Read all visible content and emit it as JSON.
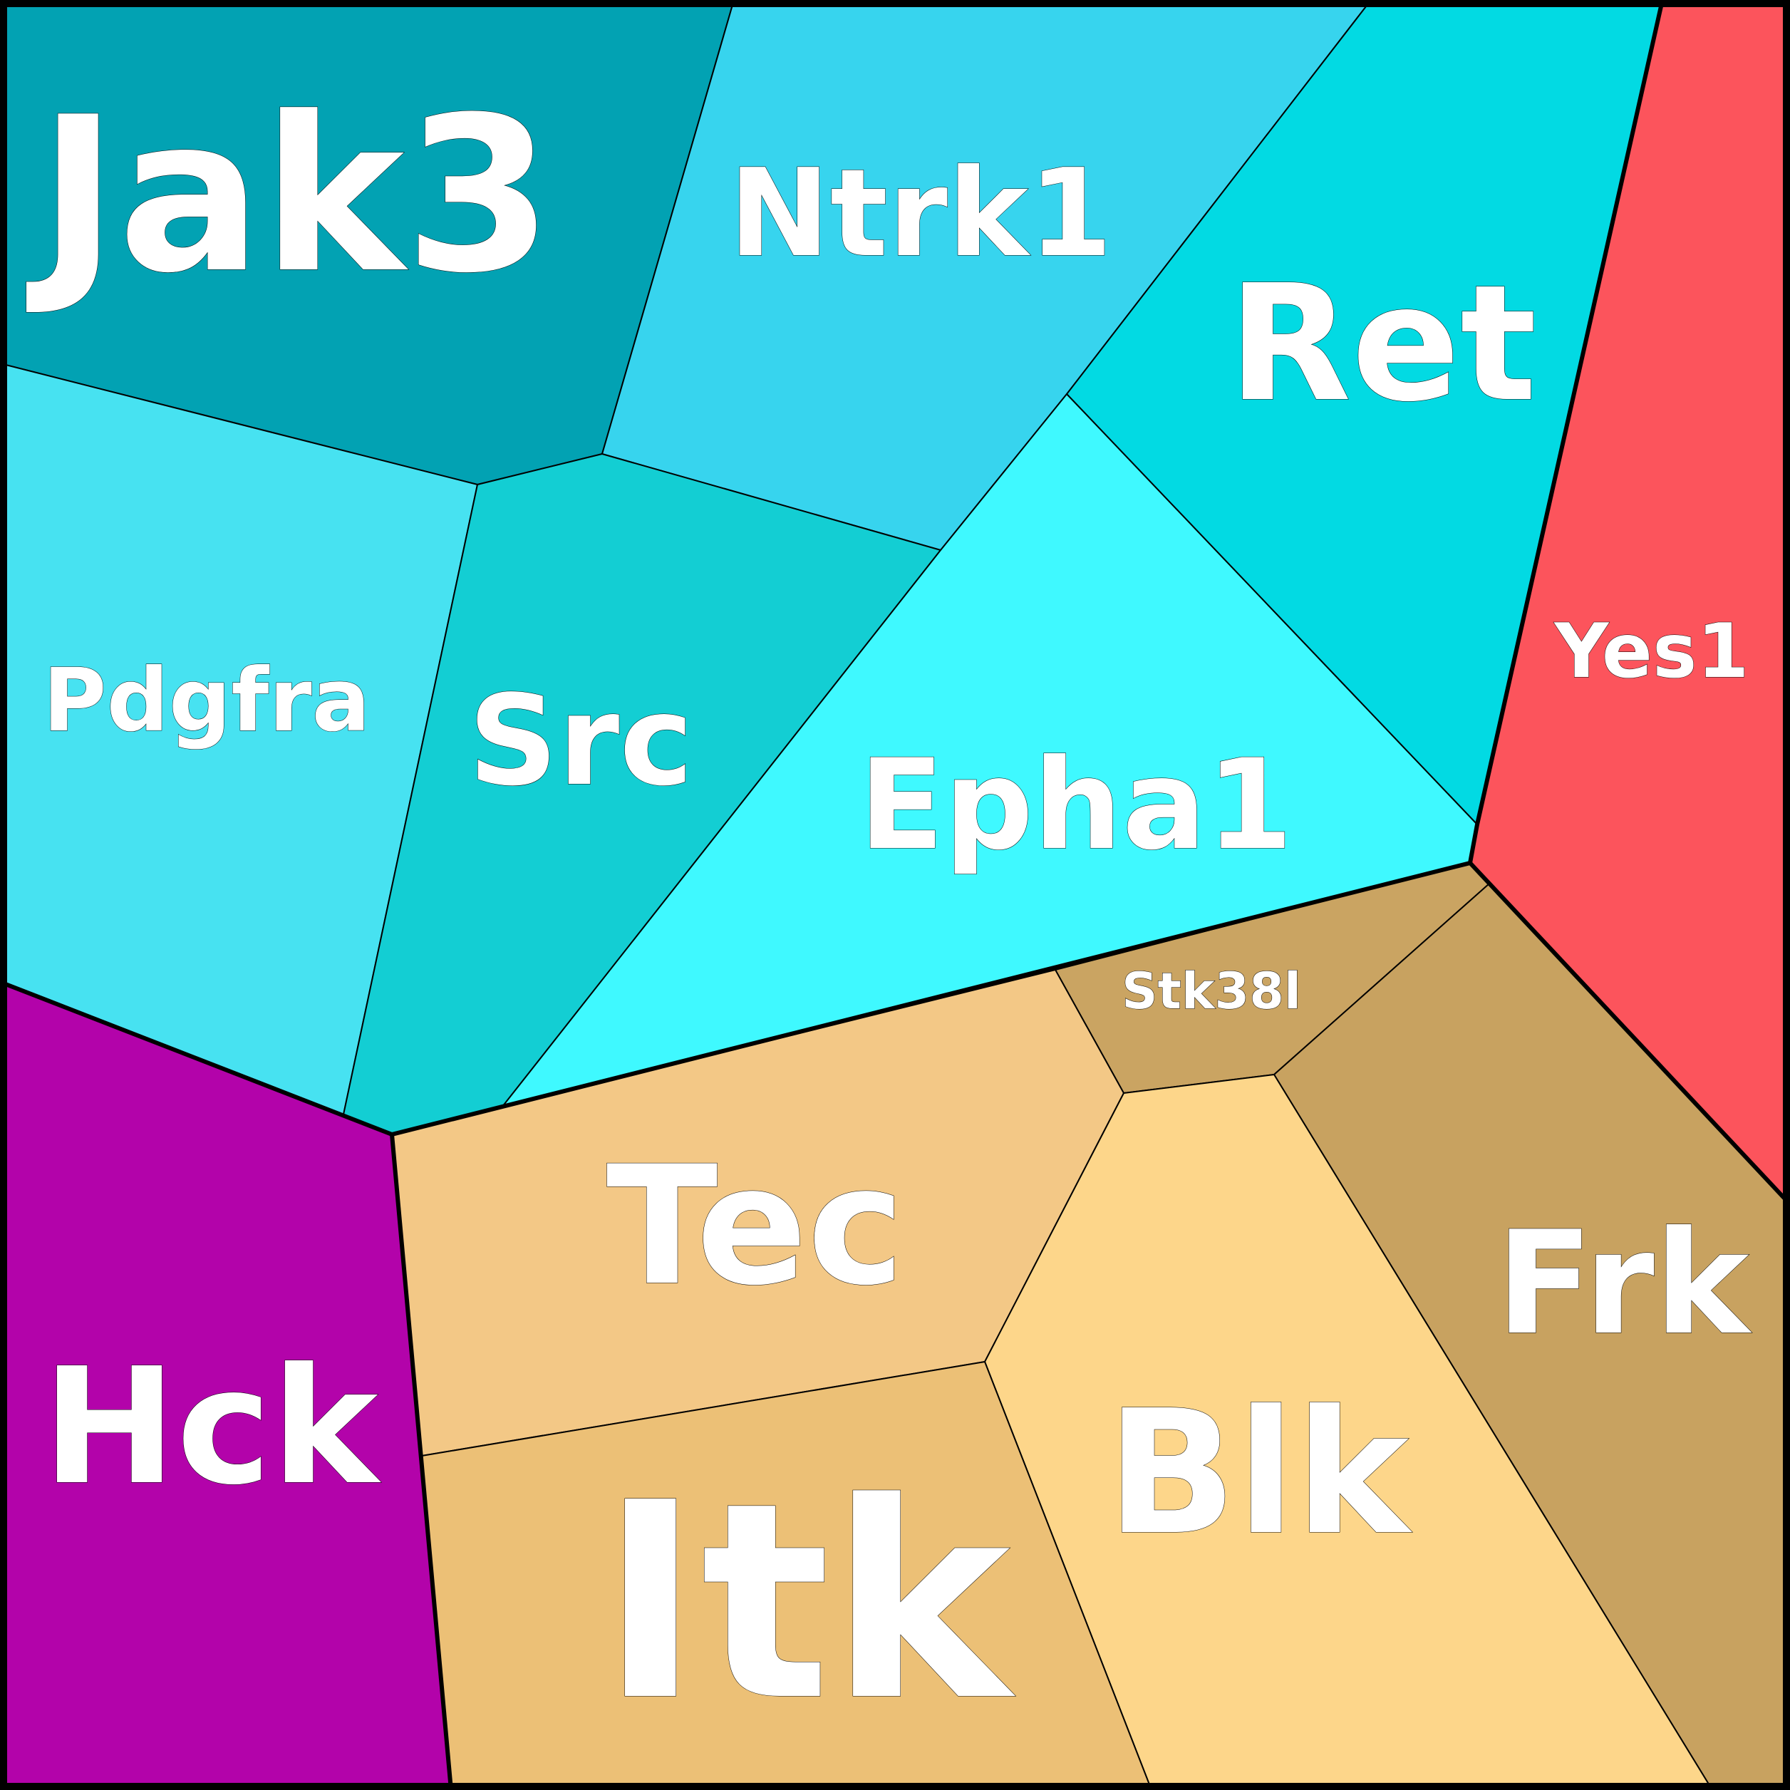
{
  "cells": [
    {
      "id": "jak3",
      "label": "Jak3",
      "color": "#02a2b3"
    },
    {
      "id": "ntrk1",
      "label": "Ntrk1",
      "color": "#37d4ee"
    },
    {
      "id": "ret",
      "label": "Ret",
      "color": "#02dae3"
    },
    {
      "id": "yes1",
      "label": "Yes1",
      "color": "#fc545c"
    },
    {
      "id": "pdgfra",
      "label": "Pdgfra",
      "color": "#47e2f1"
    },
    {
      "id": "src",
      "label": "Src",
      "color": "#13ced3"
    },
    {
      "id": "epha1",
      "label": "Epha1",
      "color": "#3ff9ff"
    },
    {
      "id": "hck",
      "label": "Hck",
      "color": "#b303aa"
    },
    {
      "id": "stk38l",
      "label": "Stk38l",
      "color": "#caa462"
    },
    {
      "id": "tec",
      "label": "Tec",
      "color": "#f3c886"
    },
    {
      "id": "frk",
      "label": "Frk",
      "color": "#c8a260"
    },
    {
      "id": "blk",
      "label": "Blk",
      "color": "#fdd68a"
    },
    {
      "id": "itk",
      "label": "Itk",
      "color": "#ecc076"
    }
  ]
}
